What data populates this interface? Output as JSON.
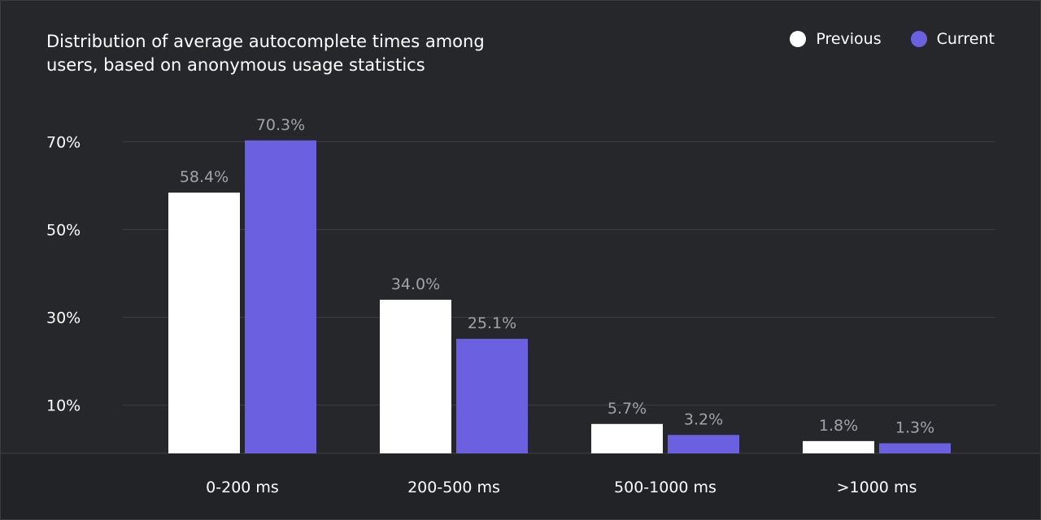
{
  "title_lines": [
    "Distribution of average autocomplete times among",
    "users, based on anonymous usage statistics"
  ],
  "colors": {
    "background": "#26272b",
    "previous": "#ffffff",
    "current": "#6b60e0",
    "grid": "#3d3e43",
    "value_label": "#a2a3a8",
    "text": "#ffffff"
  },
  "chart_data": {
    "type": "bar",
    "title": "Distribution of average autocomplete times among users, based on anonymous usage statistics",
    "categories": [
      "0-200 ms",
      "200-500 ms",
      "500-1000 ms",
      ">1000 ms"
    ],
    "series": [
      {
        "name": "Previous",
        "color": "#ffffff",
        "values": [
          58.4,
          34.0,
          5.7,
          1.8
        ],
        "labels": [
          "58.4%",
          "34.0%",
          "5.7%",
          "1.8%"
        ]
      },
      {
        "name": "Current",
        "color": "#6b60e0",
        "values": [
          70.3,
          25.1,
          3.2,
          1.3
        ],
        "labels": [
          "70.3%",
          "25.1%",
          "3.2%",
          "1.3%"
        ]
      }
    ],
    "y_ticks": [
      10,
      30,
      50,
      70
    ],
    "y_tick_labels": [
      "10%",
      "30%",
      "50%",
      "70%"
    ],
    "ylim": [
      -1,
      71
    ],
    "grid": true,
    "legend_position": "top-right"
  }
}
